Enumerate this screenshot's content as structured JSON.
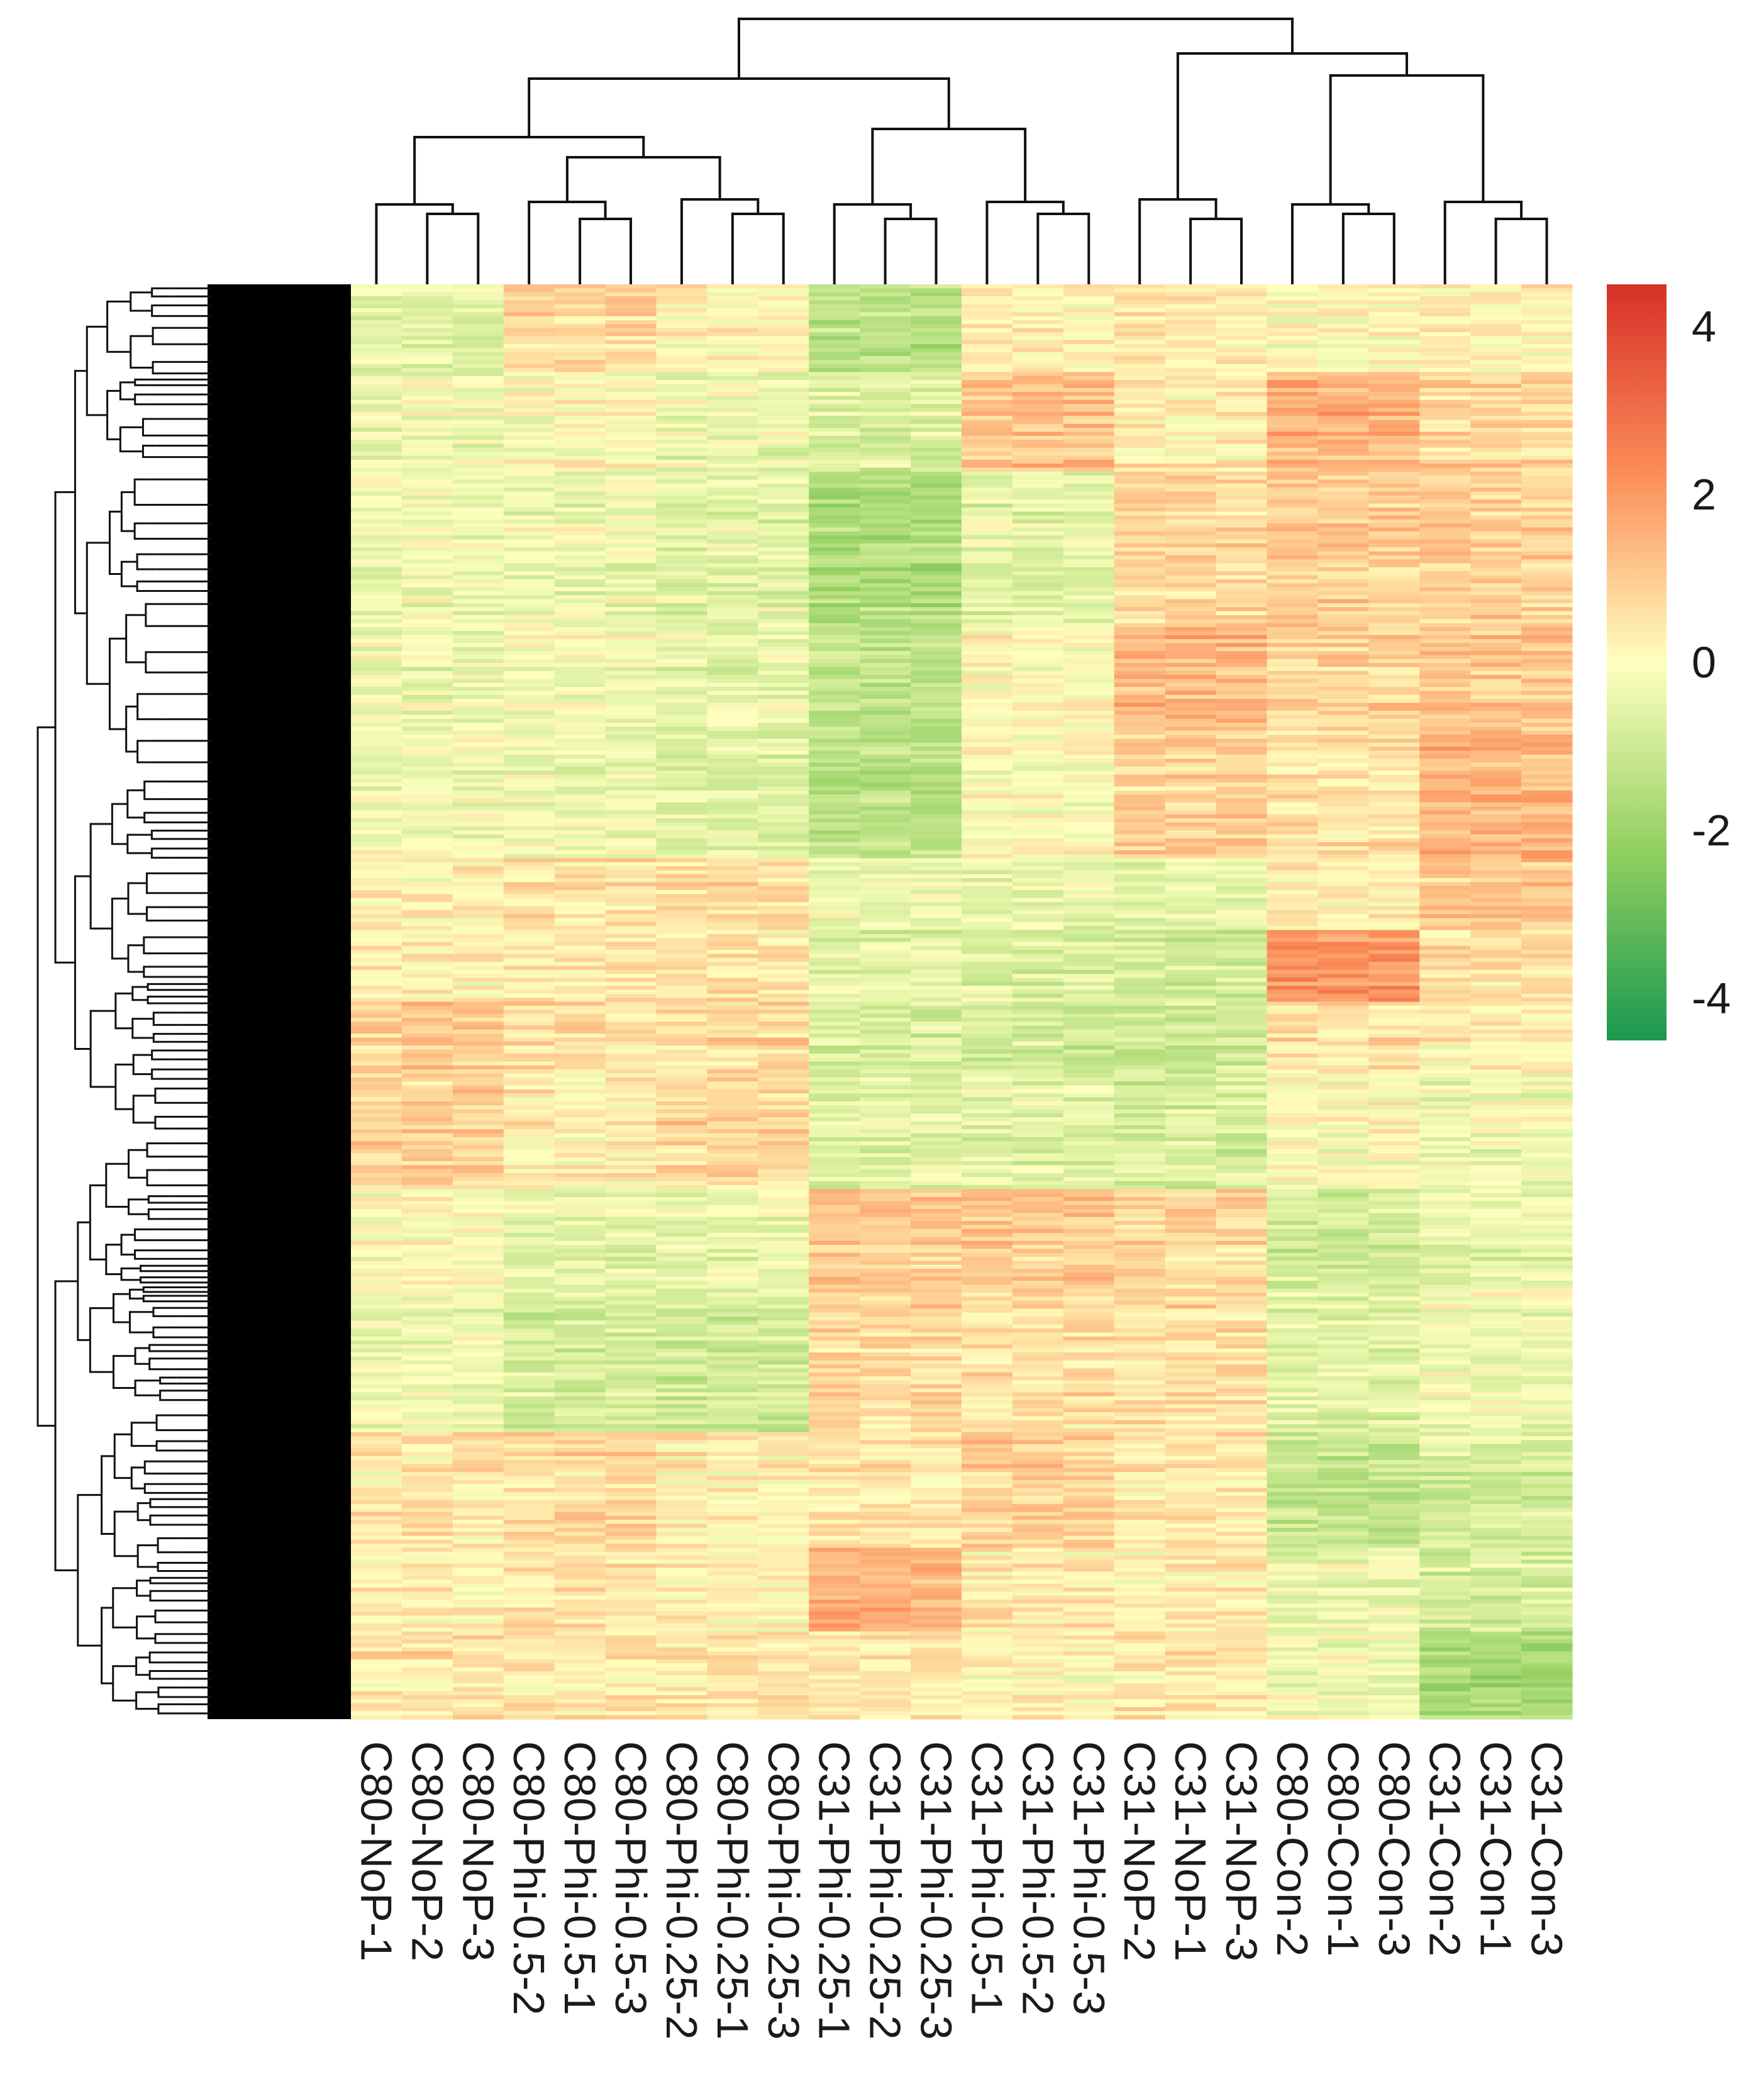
{
  "chart_data": {
    "type": "heatmap",
    "title": "",
    "columns": [
      "C80-NoP-1",
      "C80-NoP-2",
      "C80-NoP-3",
      "C80-Phi-0.5-2",
      "C80-Phi-0.5-1",
      "C80-Phi-0.5-3",
      "C80-Phi-0.25-2",
      "C80-Phi-0.25-1",
      "C80-Phi-0.25-3",
      "C31-Phi-0.25-1",
      "C31-Phi-0.25-2",
      "C31-Phi-0.25-3",
      "C31-Phi-0.5-1",
      "C31-Phi-0.5-2",
      "C31-Phi-0.5-3",
      "C31-NoP-2",
      "C31-NoP-1",
      "C31-NoP-3",
      "C80-Con-2",
      "C80-Con-1",
      "C80-Con-3",
      "C31-Con-2",
      "C31-Con-1",
      "C31-Con-3"
    ],
    "column_groups": [
      {
        "name": "C80-NoP",
        "members": [
          0,
          1,
          2
        ]
      },
      {
        "name": "C80-Phi-0.5",
        "members": [
          3,
          4,
          5
        ]
      },
      {
        "name": "C80-Phi-0.25",
        "members": [
          6,
          7,
          8
        ]
      },
      {
        "name": "C31-Phi-0.25",
        "members": [
          9,
          10,
          11
        ]
      },
      {
        "name": "C31-Phi-0.5",
        "members": [
          12,
          13,
          14
        ]
      },
      {
        "name": "C31-NoP",
        "members": [
          15,
          16,
          17
        ]
      },
      {
        "name": "C80-Con",
        "members": [
          18,
          19,
          20
        ]
      },
      {
        "name": "C31-Con",
        "members": [
          21,
          22,
          23
        ]
      }
    ],
    "row_blocks": [
      {
        "rows": "0-6%",
        "group_means": [
          -0.5,
          0.8,
          0.2,
          -1.4,
          0.3,
          0.4,
          0.1,
          0.2
        ]
      },
      {
        "rows": "6-13%",
        "group_means": [
          -0.3,
          0.0,
          -0.4,
          -0.8,
          1.2,
          0.3,
          1.5,
          0.8
        ]
      },
      {
        "rows": "13-24%",
        "group_means": [
          -0.2,
          -0.3,
          -0.5,
          -1.6,
          -0.5,
          0.8,
          1.0,
          1.0
        ]
      },
      {
        "rows": "24-31%",
        "group_means": [
          -0.3,
          -0.2,
          -0.4,
          -1.2,
          0.1,
          1.4,
          0.9,
          1.1
        ]
      },
      {
        "rows": "31-40%",
        "group_means": [
          -0.2,
          -0.3,
          -0.6,
          -1.4,
          0.0,
          0.9,
          0.6,
          1.5
        ]
      },
      {
        "rows": "40-45%",
        "group_means": [
          0.3,
          0.5,
          0.6,
          -0.4,
          -0.5,
          -0.6,
          0.3,
          1.0
        ]
      },
      {
        "rows": "45-50%",
        "group_means": [
          0.2,
          0.3,
          0.4,
          -0.7,
          -0.8,
          -1.0,
          2.0,
          0.5
        ]
      },
      {
        "rows": "50-55%",
        "group_means": [
          1.0,
          0.6,
          0.7,
          -0.8,
          -0.9,
          -1.0,
          0.5,
          0.2
        ]
      },
      {
        "rows": "55-63%",
        "group_means": [
          0.9,
          0.3,
          0.8,
          -0.6,
          -0.6,
          -0.8,
          0.0,
          -0.3
        ]
      },
      {
        "rows": "63-70%",
        "group_means": [
          0.0,
          -0.5,
          -0.4,
          1.0,
          1.1,
          0.7,
          -0.9,
          -0.5
        ]
      },
      {
        "rows": "70-80%",
        "group_means": [
          -0.3,
          -0.8,
          -0.9,
          0.8,
          0.6,
          0.7,
          -0.6,
          -0.2
        ]
      },
      {
        "rows": "80-88%",
        "group_means": [
          0.4,
          0.7,
          0.3,
          0.4,
          0.9,
          0.4,
          -1.3,
          -0.9
        ]
      },
      {
        "rows": "88-94%",
        "group_means": [
          0.2,
          0.5,
          0.2,
          1.5,
          0.4,
          0.3,
          -0.4,
          -0.8
        ]
      },
      {
        "rows": "94-100%",
        "group_means": [
          0.5,
          0.4,
          0.5,
          0.3,
          0.2,
          0.4,
          -0.3,
          -1.7
        ]
      }
    ],
    "color_scale": {
      "range": [
        -4.5,
        4.5
      ],
      "stops": [
        {
          "value": -4.5,
          "color": "#1a9850"
        },
        {
          "value": -2.25,
          "color": "#91cf60"
        },
        {
          "value": 0,
          "color": "#ffffbf"
        },
        {
          "value": 2.25,
          "color": "#fc8d59"
        },
        {
          "value": 4.5,
          "color": "#d73027"
        }
      ],
      "ticks": [
        "4",
        "2",
        "0",
        "-2",
        "-4"
      ],
      "tick_values": [
        4,
        2,
        0,
        -2,
        -4
      ]
    },
    "column_dendrogram": true,
    "row_dendrogram": true,
    "legend": "right"
  }
}
